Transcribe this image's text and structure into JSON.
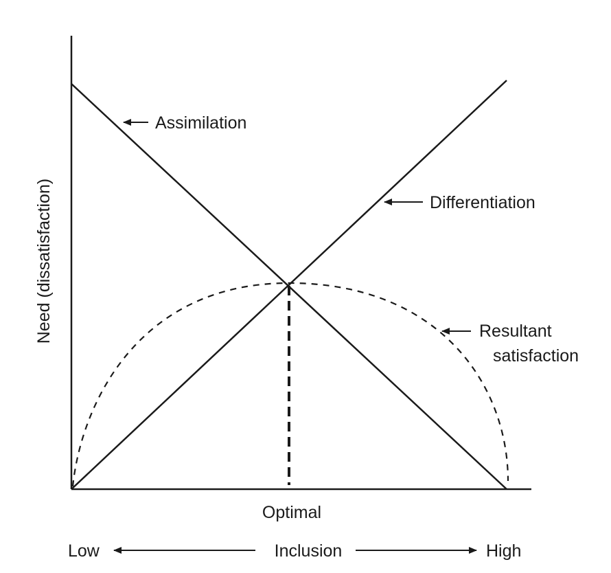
{
  "diagram": {
    "y_axis_label": "Need (dissatisfaction)",
    "x_axis_center_label": "Optimal",
    "x_axis_scale": {
      "low_label": "Low",
      "center_label": "Inclusion",
      "high_label": "High"
    },
    "curves": {
      "assimilation_label": "Assimilation",
      "differentiation_label": "Differentiation",
      "resultant_label_line1": "Resultant",
      "resultant_label_line2": "satisfaction"
    },
    "colors": {
      "ink": "#1a1a1a",
      "background": "#ffffff"
    }
  }
}
